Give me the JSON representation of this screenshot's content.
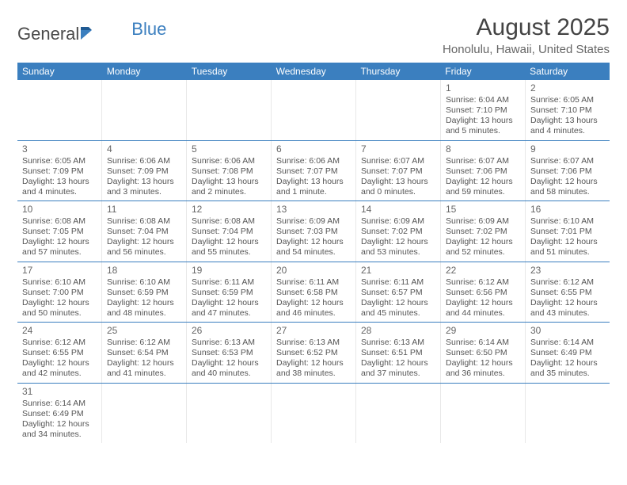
{
  "logo": {
    "text1": "General",
    "text2": "Blue",
    "color1": "#4a4a4a",
    "color2": "#3b7fbf"
  },
  "title": "August 2025",
  "subtitle": "Honolulu, Hawaii, United States",
  "header_bg": "#3b7fbf",
  "days_of_week": [
    "Sunday",
    "Monday",
    "Tuesday",
    "Wednesday",
    "Thursday",
    "Friday",
    "Saturday"
  ],
  "weeks": [
    [
      null,
      null,
      null,
      null,
      null,
      {
        "n": "1",
        "sr": "Sunrise: 6:04 AM",
        "ss": "Sunset: 7:10 PM",
        "dl": "Daylight: 13 hours and 5 minutes."
      },
      {
        "n": "2",
        "sr": "Sunrise: 6:05 AM",
        "ss": "Sunset: 7:10 PM",
        "dl": "Daylight: 13 hours and 4 minutes."
      }
    ],
    [
      {
        "n": "3",
        "sr": "Sunrise: 6:05 AM",
        "ss": "Sunset: 7:09 PM",
        "dl": "Daylight: 13 hours and 4 minutes."
      },
      {
        "n": "4",
        "sr": "Sunrise: 6:06 AM",
        "ss": "Sunset: 7:09 PM",
        "dl": "Daylight: 13 hours and 3 minutes."
      },
      {
        "n": "5",
        "sr": "Sunrise: 6:06 AM",
        "ss": "Sunset: 7:08 PM",
        "dl": "Daylight: 13 hours and 2 minutes."
      },
      {
        "n": "6",
        "sr": "Sunrise: 6:06 AM",
        "ss": "Sunset: 7:07 PM",
        "dl": "Daylight: 13 hours and 1 minute."
      },
      {
        "n": "7",
        "sr": "Sunrise: 6:07 AM",
        "ss": "Sunset: 7:07 PM",
        "dl": "Daylight: 13 hours and 0 minutes."
      },
      {
        "n": "8",
        "sr": "Sunrise: 6:07 AM",
        "ss": "Sunset: 7:06 PM",
        "dl": "Daylight: 12 hours and 59 minutes."
      },
      {
        "n": "9",
        "sr": "Sunrise: 6:07 AM",
        "ss": "Sunset: 7:06 PM",
        "dl": "Daylight: 12 hours and 58 minutes."
      }
    ],
    [
      {
        "n": "10",
        "sr": "Sunrise: 6:08 AM",
        "ss": "Sunset: 7:05 PM",
        "dl": "Daylight: 12 hours and 57 minutes."
      },
      {
        "n": "11",
        "sr": "Sunrise: 6:08 AM",
        "ss": "Sunset: 7:04 PM",
        "dl": "Daylight: 12 hours and 56 minutes."
      },
      {
        "n": "12",
        "sr": "Sunrise: 6:08 AM",
        "ss": "Sunset: 7:04 PM",
        "dl": "Daylight: 12 hours and 55 minutes."
      },
      {
        "n": "13",
        "sr": "Sunrise: 6:09 AM",
        "ss": "Sunset: 7:03 PM",
        "dl": "Daylight: 12 hours and 54 minutes."
      },
      {
        "n": "14",
        "sr": "Sunrise: 6:09 AM",
        "ss": "Sunset: 7:02 PM",
        "dl": "Daylight: 12 hours and 53 minutes."
      },
      {
        "n": "15",
        "sr": "Sunrise: 6:09 AM",
        "ss": "Sunset: 7:02 PM",
        "dl": "Daylight: 12 hours and 52 minutes."
      },
      {
        "n": "16",
        "sr": "Sunrise: 6:10 AM",
        "ss": "Sunset: 7:01 PM",
        "dl": "Daylight: 12 hours and 51 minutes."
      }
    ],
    [
      {
        "n": "17",
        "sr": "Sunrise: 6:10 AM",
        "ss": "Sunset: 7:00 PM",
        "dl": "Daylight: 12 hours and 50 minutes."
      },
      {
        "n": "18",
        "sr": "Sunrise: 6:10 AM",
        "ss": "Sunset: 6:59 PM",
        "dl": "Daylight: 12 hours and 48 minutes."
      },
      {
        "n": "19",
        "sr": "Sunrise: 6:11 AM",
        "ss": "Sunset: 6:59 PM",
        "dl": "Daylight: 12 hours and 47 minutes."
      },
      {
        "n": "20",
        "sr": "Sunrise: 6:11 AM",
        "ss": "Sunset: 6:58 PM",
        "dl": "Daylight: 12 hours and 46 minutes."
      },
      {
        "n": "21",
        "sr": "Sunrise: 6:11 AM",
        "ss": "Sunset: 6:57 PM",
        "dl": "Daylight: 12 hours and 45 minutes."
      },
      {
        "n": "22",
        "sr": "Sunrise: 6:12 AM",
        "ss": "Sunset: 6:56 PM",
        "dl": "Daylight: 12 hours and 44 minutes."
      },
      {
        "n": "23",
        "sr": "Sunrise: 6:12 AM",
        "ss": "Sunset: 6:55 PM",
        "dl": "Daylight: 12 hours and 43 minutes."
      }
    ],
    [
      {
        "n": "24",
        "sr": "Sunrise: 6:12 AM",
        "ss": "Sunset: 6:55 PM",
        "dl": "Daylight: 12 hours and 42 minutes."
      },
      {
        "n": "25",
        "sr": "Sunrise: 6:12 AM",
        "ss": "Sunset: 6:54 PM",
        "dl": "Daylight: 12 hours and 41 minutes."
      },
      {
        "n": "26",
        "sr": "Sunrise: 6:13 AM",
        "ss": "Sunset: 6:53 PM",
        "dl": "Daylight: 12 hours and 40 minutes."
      },
      {
        "n": "27",
        "sr": "Sunrise: 6:13 AM",
        "ss": "Sunset: 6:52 PM",
        "dl": "Daylight: 12 hours and 38 minutes."
      },
      {
        "n": "28",
        "sr": "Sunrise: 6:13 AM",
        "ss": "Sunset: 6:51 PM",
        "dl": "Daylight: 12 hours and 37 minutes."
      },
      {
        "n": "29",
        "sr": "Sunrise: 6:14 AM",
        "ss": "Sunset: 6:50 PM",
        "dl": "Daylight: 12 hours and 36 minutes."
      },
      {
        "n": "30",
        "sr": "Sunrise: 6:14 AM",
        "ss": "Sunset: 6:49 PM",
        "dl": "Daylight: 12 hours and 35 minutes."
      }
    ],
    [
      {
        "n": "31",
        "sr": "Sunrise: 6:14 AM",
        "ss": "Sunset: 6:49 PM",
        "dl": "Daylight: 12 hours and 34 minutes."
      },
      null,
      null,
      null,
      null,
      null,
      null
    ]
  ]
}
